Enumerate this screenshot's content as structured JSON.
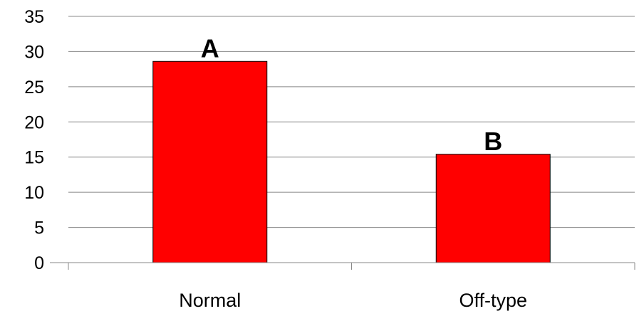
{
  "chart_data": {
    "type": "bar",
    "title": "",
    "xlabel": "",
    "ylabel": "",
    "categories": [
      "Normal",
      "Off-type"
    ],
    "values": [
      28.6,
      15.4
    ],
    "annotations": [
      "A",
      "B"
    ],
    "ylim": [
      0,
      35
    ],
    "yticks": [
      0,
      5,
      10,
      15,
      20,
      25,
      30,
      35
    ],
    "grid": true,
    "legend": "none",
    "bar_color": "#ff0000",
    "bar_outline_color": "#000000",
    "gridline_color": "#888888"
  }
}
